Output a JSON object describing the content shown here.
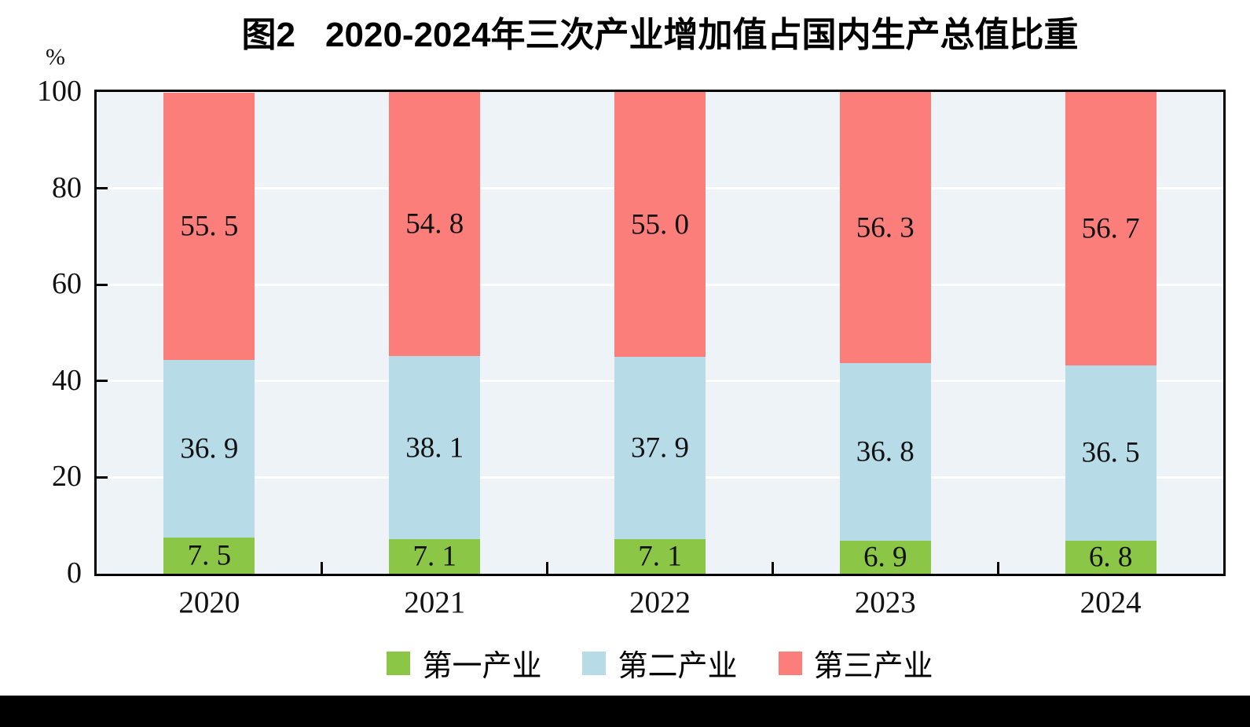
{
  "header": {
    "figure_label": "图2",
    "title": "2020-2024年三次产业增加值占国内生产总值比重"
  },
  "y_axis": {
    "unit": "%"
  },
  "colors": {
    "plot_background": "#EDF3F7",
    "gridline": "#FFFFFF",
    "axis_frame": "#000000",
    "primary_green": "#8CC646",
    "secondary_blue": "#B7DCE8",
    "tertiary_red": "#FB7E7B",
    "bottom_bar": "#000000"
  },
  "chart_data": {
    "type": "bar",
    "stacked": true,
    "title": "图2 2020-2024年三次产业增加值占国内生产总值比重",
    "xlabel": "",
    "ylabel": "%",
    "ylim": [
      0,
      100
    ],
    "yticks": [
      0,
      20,
      40,
      60,
      80,
      100
    ],
    "grid": "horizontal white lines at each ytick",
    "legend_position": "bottom",
    "categories": [
      "2020",
      "2021",
      "2022",
      "2023",
      "2024"
    ],
    "series": [
      {
        "name": "第一产业",
        "color": "#8CC646",
        "values": [
          7.5,
          7.1,
          7.1,
          6.9,
          6.8
        ]
      },
      {
        "name": "第二产业",
        "color": "#B7DCE8",
        "values": [
          36.9,
          38.1,
          37.9,
          36.8,
          36.5
        ]
      },
      {
        "name": "第三产业",
        "color": "#FB7E7B",
        "values": [
          55.5,
          54.8,
          55.0,
          56.3,
          56.7
        ]
      }
    ]
  }
}
